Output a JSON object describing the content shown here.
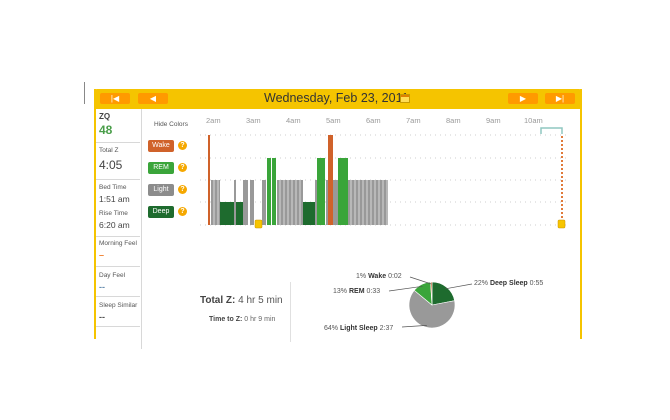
{
  "header": {
    "date": "Wednesday, Feb 23, 2011",
    "nav": [
      "first",
      "prev",
      "next",
      "last"
    ]
  },
  "sidebar": {
    "zq_label": "ZQ",
    "zq_value": "48",
    "total_z_label": "Total Z",
    "total_z_value": "4:05",
    "bed_time_label": "Bed Time",
    "bed_time_value": "1:51 am",
    "rise_time_label": "Rise Time",
    "rise_time_value": "6:20 am",
    "morning_feel_label": "Morning Feel",
    "morning_feel_value": "–",
    "day_feel_label": "Day Feel",
    "day_feel_value": "--",
    "sleep_similar_label": "Sleep Similar",
    "sleep_similar_value": "--"
  },
  "graph": {
    "hide_colors": "Hide Colors",
    "ticks": [
      "2am",
      "3am",
      "4am",
      "5am",
      "6am",
      "7am",
      "8am",
      "9am",
      "10am"
    ],
    "legend": [
      {
        "label": "Wake",
        "color": "#d0622a"
      },
      {
        "label": "REM",
        "color": "#3aa53a"
      },
      {
        "label": "Light",
        "color": "#8c8c8c"
      },
      {
        "label": "Deep",
        "color": "#1e6b2e"
      }
    ]
  },
  "summary": {
    "total_z_label": "Total Z:",
    "total_z_value": "4 hr 5 min",
    "time_to_z_label": "Time to Z:",
    "time_to_z_value": "0 hr 9 min"
  },
  "chart_data": {
    "type": "pie",
    "categories": [
      "Wake",
      "REM",
      "Light Sleep",
      "Deep Sleep"
    ],
    "values": [
      1,
      13,
      64,
      22
    ],
    "durations": [
      "0:02",
      "0:33",
      "2:37",
      "0:55"
    ],
    "colors": [
      "#d0622a",
      "#3aa53a",
      "#999999",
      "#1e6b2e"
    ]
  }
}
